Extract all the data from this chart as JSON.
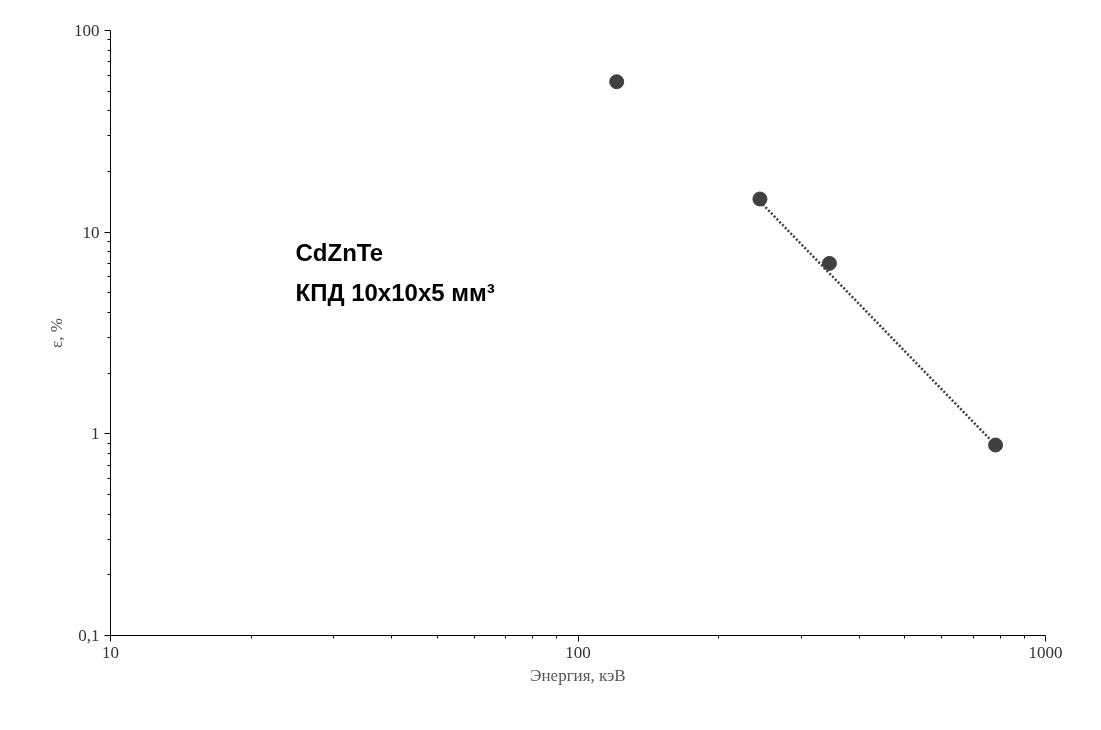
{
  "chart_data": {
    "type": "scatter",
    "xlabel": "Энергия, кэВ",
    "ylabel": "ε, %",
    "log": "xy",
    "grid": false,
    "marker": "circle",
    "xlim": [
      10,
      1000
    ],
    "xticks": [
      10,
      100,
      1000
    ],
    "ylim": [
      0.1,
      100
    ],
    "yticks": [
      {
        "value": 0.1,
        "label": "0,1"
      },
      1,
      10,
      100
    ],
    "series": [
      {
        "type": "scatter",
        "color": "#404040",
        "x": [
          121,
          245,
          345,
          782
        ],
        "values": [
          55.7,
          14.6,
          7.0,
          0.88
        ]
      },
      {
        "type": "line",
        "color": "#404040",
        "line_style": "dotted",
        "marker": "none",
        "x": [
          245,
          782
        ],
        "values": [
          14.2,
          0.88
        ]
      }
    ],
    "annotations": [
      {
        "text": "CdZnTe"
      },
      {
        "text": "КПД 10x10x5 мм³"
      }
    ]
  }
}
